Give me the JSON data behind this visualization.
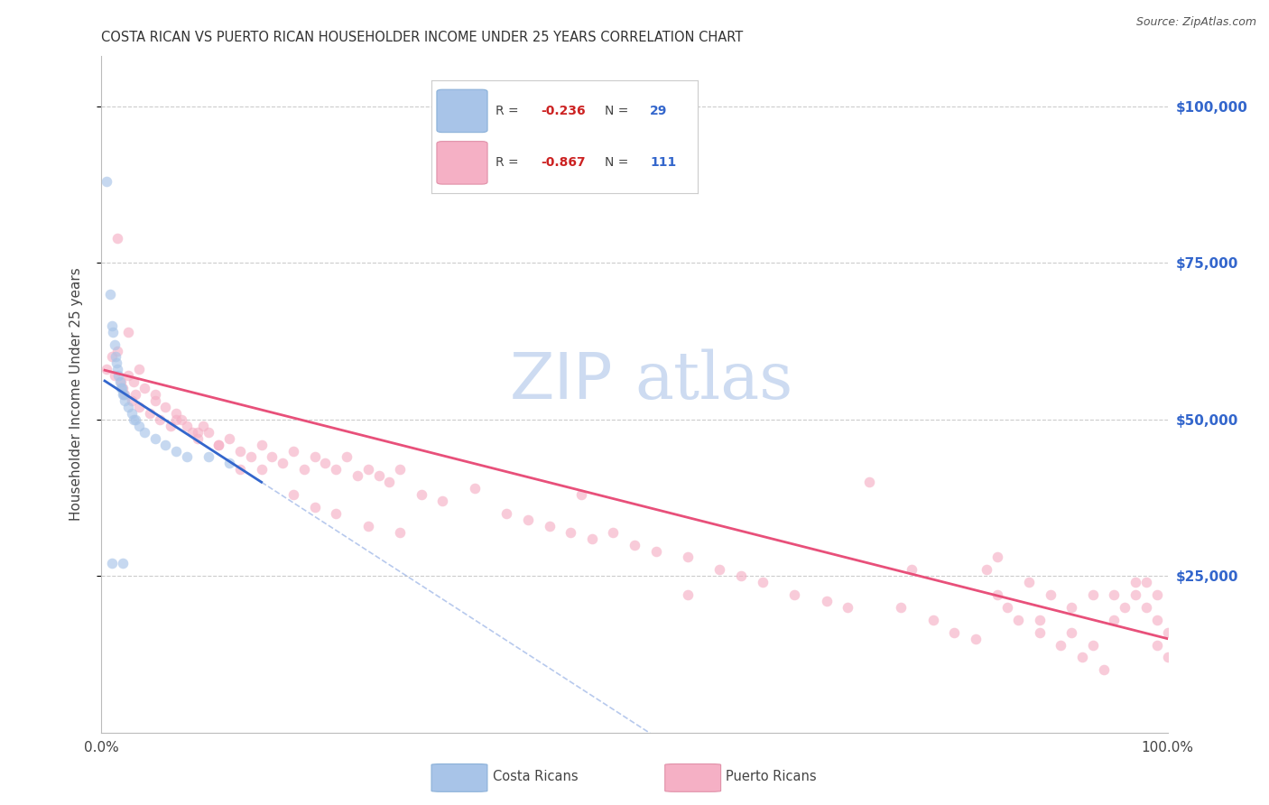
{
  "title": "COSTA RICAN VS PUERTO RICAN HOUSEHOLDER INCOME UNDER 25 YEARS CORRELATION CHART",
  "source": "Source: ZipAtlas.com",
  "ylabel": "Householder Income Under 25 years",
  "ytick_labels": [
    "$25,000",
    "$50,000",
    "$75,000",
    "$100,000"
  ],
  "ytick_values": [
    25000,
    50000,
    75000,
    100000
  ],
  "blue_line_color": "#3366cc",
  "pink_line_color": "#e8507a",
  "blue_dot_color": "#a8c4e8",
  "pink_dot_color": "#f5b0c5",
  "dot_size": 70,
  "dot_alpha": 0.65,
  "background_color": "#ffffff",
  "grid_color": "#cccccc",
  "title_color": "#333333",
  "source_color": "#555555",
  "right_tick_color": "#3366cc",
  "watermark_zip_color": "#c8d8ee",
  "watermark_atlas_color": "#c8d8f0",
  "cr_R": "-0.236",
  "cr_N": "29",
  "pr_R": "-0.867",
  "pr_N": "111",
  "legend_label_cr": "Costa Ricans",
  "legend_label_pr": "Puerto Ricans"
}
